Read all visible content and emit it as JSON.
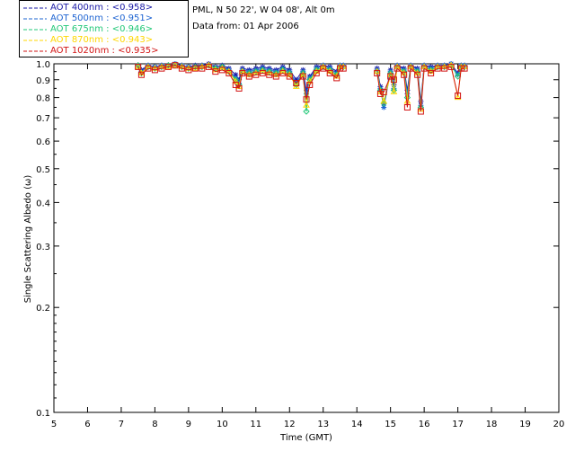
{
  "header": {
    "station": "PML, N 50 22', W 04 08', Alt 0m",
    "date": "Data from: 01 Apr 2006"
  },
  "legend": [
    {
      "label": "AOT  400nm : <0.958>",
      "color": "#1a1aa6"
    },
    {
      "label": "AOT  500nm : <0.951>",
      "color": "#1e64d2"
    },
    {
      "label": "AOT  675nm : <0.946>",
      "color": "#22c878"
    },
    {
      "label": "AOT  870nm : <0.943>",
      "color": "#ffd700"
    },
    {
      "label": "AOT 1020nm : <0.935>",
      "color": "#d21414"
    }
  ],
  "chart_data": {
    "type": "line",
    "xlabel": "Time (GMT)",
    "ylabel": "Single Scattering Albedo (ω)",
    "xlim": [
      5,
      20
    ],
    "ylim": [
      0.1,
      1.0
    ],
    "yscale": "log",
    "xticks": [
      "5",
      "6",
      "7",
      "8",
      "9",
      "10",
      "11",
      "12",
      "13",
      "14",
      "15",
      "16",
      "17",
      "18",
      "19",
      "20"
    ],
    "yticks": [
      "0.1",
      "0.2",
      "0.3",
      "0.4",
      "0.5",
      "0.6",
      "0.7",
      "0.8",
      "0.9",
      "1.0"
    ],
    "x": [
      7.5,
      7.6,
      7.8,
      8.0,
      8.2,
      8.4,
      8.6,
      8.8,
      9.0,
      9.2,
      9.4,
      9.6,
      9.8,
      10.0,
      10.2,
      10.4,
      10.5,
      10.6,
      10.8,
      11.0,
      11.2,
      11.4,
      11.6,
      11.8,
      12.0,
      12.2,
      12.4,
      12.5,
      12.6,
      12.8,
      13.0,
      13.2,
      13.4,
      13.5,
      13.6,
      14.6,
      14.7,
      14.8,
      15.0,
      15.1,
      15.2,
      15.4,
      15.5,
      15.6,
      15.8,
      15.9,
      16.0,
      16.2,
      16.4,
      16.6,
      16.8,
      17.0,
      17.1,
      17.2
    ],
    "series": [
      {
        "name": "AOT  400nm : <0.958>",
        "marker": "star",
        "values": [
          0.99,
          0.96,
          0.99,
          0.98,
          0.99,
          0.99,
          1.0,
          0.99,
          0.98,
          0.99,
          0.99,
          1.0,
          0.98,
          0.99,
          0.97,
          0.93,
          0.9,
          0.97,
          0.96,
          0.97,
          0.98,
          0.97,
          0.96,
          0.98,
          0.96,
          0.9,
          0.96,
          0.84,
          0.92,
          0.98,
          0.99,
          0.98,
          0.95,
          0.99,
          0.99,
          0.97,
          0.86,
          0.77,
          0.96,
          0.87,
          0.99,
          0.97,
          0.84,
          0.99,
          0.97,
          0.78,
          0.99,
          0.98,
          0.99,
          0.99,
          1.0,
          0.94,
          0.99,
          0.99
        ]
      },
      {
        "name": "AOT  500nm : <0.951>",
        "marker": "star",
        "values": [
          0.99,
          0.95,
          0.99,
          0.98,
          0.99,
          0.99,
          1.0,
          0.99,
          0.98,
          0.98,
          0.99,
          0.99,
          0.97,
          0.98,
          0.96,
          0.91,
          0.88,
          0.96,
          0.95,
          0.96,
          0.97,
          0.96,
          0.95,
          0.97,
          0.95,
          0.88,
          0.95,
          0.82,
          0.91,
          0.97,
          0.99,
          0.97,
          0.94,
          0.99,
          0.99,
          0.96,
          0.85,
          0.75,
          0.95,
          0.85,
          0.99,
          0.96,
          0.82,
          0.99,
          0.96,
          0.76,
          0.99,
          0.97,
          0.99,
          0.99,
          1.0,
          0.93,
          0.99,
          0.99
        ]
      },
      {
        "name": "AOT  675nm : <0.946>",
        "marker": "diamond",
        "values": [
          0.99,
          0.94,
          0.98,
          0.97,
          0.98,
          0.99,
          0.99,
          0.98,
          0.97,
          0.98,
          0.98,
          0.99,
          0.97,
          0.98,
          0.95,
          0.9,
          0.87,
          0.95,
          0.94,
          0.95,
          0.96,
          0.95,
          0.94,
          0.96,
          0.94,
          0.87,
          0.94,
          0.73,
          0.9,
          0.96,
          0.98,
          0.96,
          0.93,
          0.98,
          0.98,
          0.95,
          0.84,
          0.77,
          0.94,
          0.84,
          0.98,
          0.95,
          0.8,
          0.98,
          0.95,
          0.75,
          0.98,
          0.96,
          0.98,
          0.98,
          0.99,
          0.92,
          0.98,
          0.98
        ]
      },
      {
        "name": "AOT  870nm : <0.943>",
        "marker": "triangle",
        "values": [
          0.98,
          0.94,
          0.98,
          0.97,
          0.98,
          0.98,
          0.99,
          0.98,
          0.97,
          0.97,
          0.98,
          0.99,
          0.96,
          0.97,
          0.95,
          0.89,
          0.86,
          0.95,
          0.93,
          0.94,
          0.95,
          0.94,
          0.93,
          0.95,
          0.93,
          0.86,
          0.93,
          0.76,
          0.89,
          0.95,
          0.98,
          0.95,
          0.92,
          0.98,
          0.98,
          0.95,
          0.83,
          0.78,
          0.93,
          0.83,
          0.98,
          0.94,
          0.78,
          0.98,
          0.94,
          0.74,
          0.98,
          0.95,
          0.98,
          0.98,
          0.99,
          0.8,
          0.98,
          0.98
        ]
      },
      {
        "name": "AOT 1020nm : <0.935>",
        "marker": "square",
        "values": [
          0.98,
          0.93,
          0.97,
          0.96,
          0.97,
          0.98,
          0.99,
          0.97,
          0.96,
          0.97,
          0.97,
          0.98,
          0.95,
          0.96,
          0.94,
          0.87,
          0.85,
          0.94,
          0.92,
          0.93,
          0.94,
          0.93,
          0.92,
          0.94,
          0.92,
          0.88,
          0.92,
          0.79,
          0.87,
          0.94,
          0.97,
          0.94,
          0.91,
          0.97,
          0.97,
          0.94,
          0.82,
          0.83,
          0.92,
          0.9,
          0.97,
          0.93,
          0.75,
          0.97,
          0.93,
          0.73,
          0.97,
          0.94,
          0.97,
          0.97,
          0.98,
          0.81,
          0.97,
          0.97
        ]
      }
    ]
  }
}
